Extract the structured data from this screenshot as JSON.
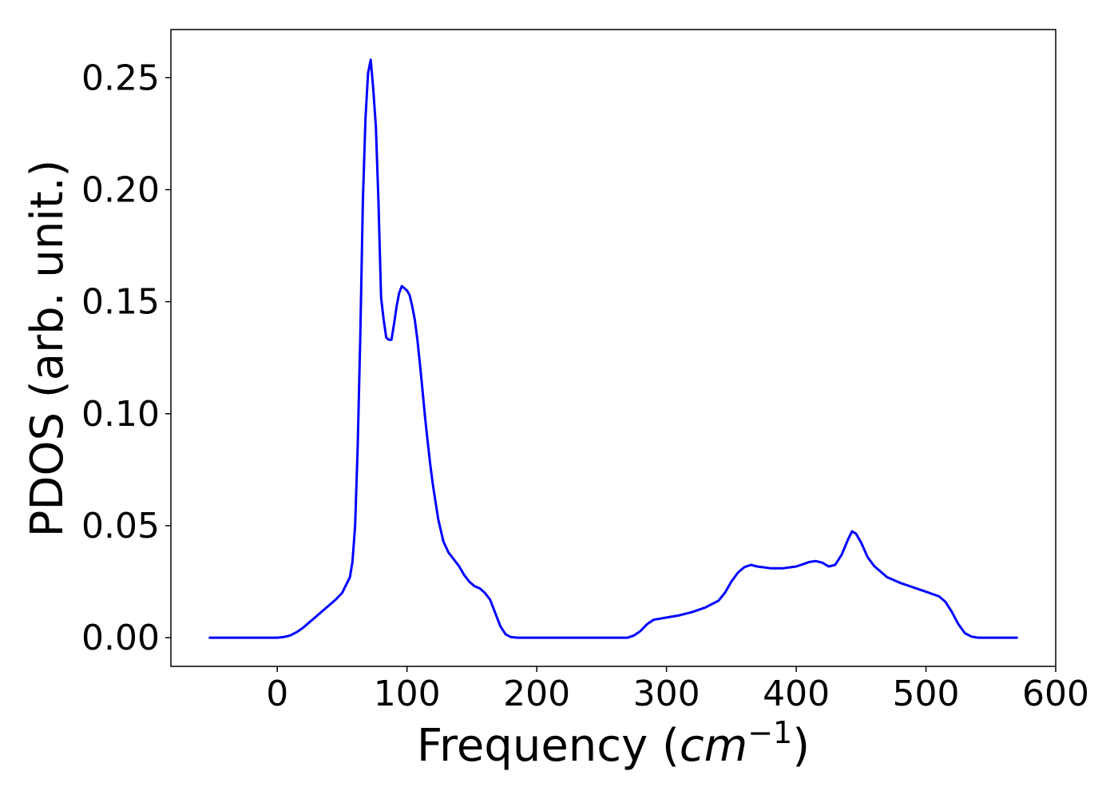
{
  "chart_data": {
    "type": "line",
    "title": "",
    "xlabel": "Frequency (",
    "xlabel_math": "cm",
    "xlabel_sup": "−1",
    "xlabel_end": ")",
    "ylabel": "PDOS (arb. unit.)",
    "xlim": [
      -82,
      600
    ],
    "ylim": [
      -0.0128,
      0.2715
    ],
    "xticks": [
      0,
      100,
      200,
      300,
      400,
      500,
      600
    ],
    "yticks": [
      0.0,
      0.05,
      0.1,
      0.15,
      0.2,
      0.25
    ],
    "ytick_labels": [
      "0.00",
      "0.05",
      "0.10",
      "0.15",
      "0.20",
      "0.25"
    ],
    "grid": false,
    "legend": "none",
    "series": [
      {
        "color": "#0000ff",
        "x": [
          -52,
          0,
          5,
          10,
          15,
          20,
          25,
          30,
          35,
          40,
          45,
          50,
          53,
          56,
          58,
          60,
          62,
          64,
          66,
          68,
          70,
          72,
          74,
          76,
          78,
          80,
          82,
          84,
          86,
          88,
          90,
          92,
          94,
          96,
          98,
          100,
          102,
          104,
          106,
          108,
          110,
          112,
          114,
          116,
          118,
          120,
          124,
          128,
          132,
          136,
          140,
          144,
          148,
          152,
          156,
          160,
          164,
          168,
          172,
          176,
          180,
          185,
          190,
          200,
          270,
          275,
          280,
          285,
          290,
          300,
          310,
          320,
          330,
          340,
          345,
          350,
          355,
          360,
          365,
          370,
          380,
          390,
          400,
          410,
          415,
          420,
          425,
          430,
          435,
          440,
          443,
          446,
          450,
          455,
          460,
          470,
          480,
          490,
          500,
          505,
          510,
          515,
          520,
          525,
          530,
          535,
          540,
          570
        ],
        "y": [
          0.0,
          0.0,
          0.0003,
          0.001,
          0.0025,
          0.0045,
          0.007,
          0.0095,
          0.012,
          0.0145,
          0.017,
          0.02,
          0.0235,
          0.027,
          0.034,
          0.05,
          0.085,
          0.135,
          0.195,
          0.232,
          0.252,
          0.258,
          0.245,
          0.228,
          0.195,
          0.152,
          0.142,
          0.134,
          0.133,
          0.133,
          0.14,
          0.148,
          0.154,
          0.157,
          0.156,
          0.155,
          0.153,
          0.148,
          0.142,
          0.133,
          0.122,
          0.11,
          0.098,
          0.087,
          0.077,
          0.068,
          0.053,
          0.043,
          0.038,
          0.035,
          0.032,
          0.028,
          0.025,
          0.023,
          0.022,
          0.02,
          0.017,
          0.011,
          0.005,
          0.0015,
          0.0003,
          0.0,
          0.0,
          0.0,
          0.0,
          0.001,
          0.003,
          0.006,
          0.008,
          0.009,
          0.01,
          0.0115,
          0.0135,
          0.0165,
          0.02,
          0.025,
          0.029,
          0.0315,
          0.0325,
          0.0318,
          0.031,
          0.031,
          0.0318,
          0.0338,
          0.0342,
          0.0335,
          0.0318,
          0.0325,
          0.037,
          0.044,
          0.0475,
          0.0465,
          0.0425,
          0.036,
          0.032,
          0.027,
          0.0245,
          0.0225,
          0.0205,
          0.0195,
          0.0185,
          0.016,
          0.0115,
          0.006,
          0.002,
          0.0005,
          0.0,
          0.0
        ]
      }
    ]
  }
}
